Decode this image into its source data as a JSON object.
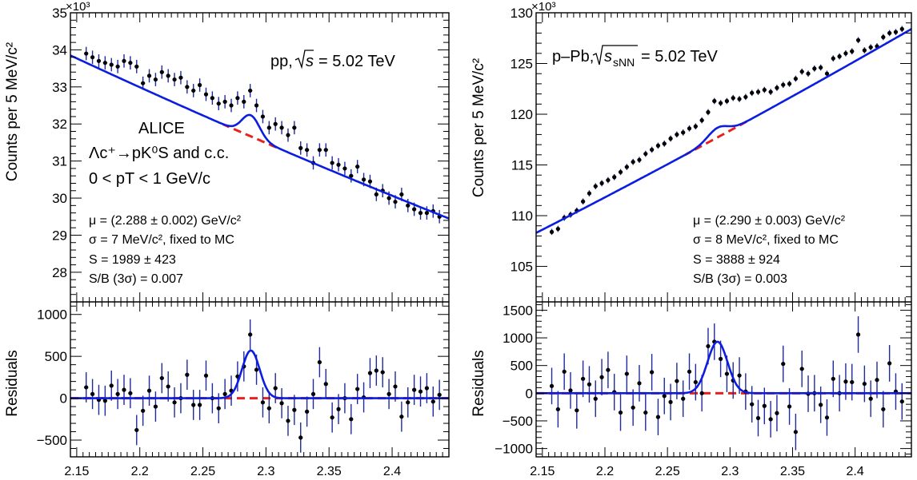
{
  "chart_data": [
    {
      "type": "scatter",
      "panel": "pp",
      "exponent_label": "×10³",
      "ylabel": "Counts per 5 MeV/c²",
      "residual_ylabel": "Residuals",
      "xlim": [
        2.145,
        2.445
      ],
      "ylim": [
        27.2,
        35
      ],
      "residual_ylim": [
        -700,
        1150
      ],
      "x_ticks": [
        2.15,
        2.2,
        2.25,
        2.3,
        2.35,
        2.4
      ],
      "x_tick_labels": [
        "2.15",
        "2.2",
        "2.25",
        "2.3",
        "2.35",
        "2.4"
      ],
      "y_ticks": [
        28,
        29,
        30,
        31,
        32,
        33,
        34,
        35
      ],
      "y_tick_labels": [
        "28",
        "29",
        "30",
        "31",
        "32",
        "33",
        "34",
        "35"
      ],
      "residual_y_ticks": [
        -500,
        0,
        500,
        1000
      ],
      "residual_y_tick_labels": [
        "−500",
        "0",
        "500",
        "1000"
      ],
      "system_label": "pp,",
      "energy_label": "= 5.02 TeV",
      "energy_symbol": "s",
      "alice_label": "ALICE",
      "decay_label": "Λc⁺→pK⁰S and c.c.",
      "pt_label": "0 < pT < 1 GeV/c",
      "stats": [
        "μ = (2.288 ± 0.002) GeV/c²",
        "σ = 7 MeV/c², fixed to MC",
        "S = 1989 ± 423",
        "S/B (3σ) = 0.007"
      ],
      "fit": {
        "mu": 2.288,
        "sigma": 0.007,
        "bg_start": 33.85,
        "bg_end": 29.45,
        "bg_quad": -0.35,
        "peak_height": 0.57,
        "residual_peak": 570
      },
      "points": {
        "x": [
          2.1575,
          2.1625,
          2.1675,
          2.1725,
          2.1775,
          2.1825,
          2.1875,
          2.1925,
          2.1975,
          2.2025,
          2.2075,
          2.2125,
          2.2175,
          2.2225,
          2.2275,
          2.2325,
          2.2375,
          2.2425,
          2.2475,
          2.2525,
          2.2575,
          2.2625,
          2.2675,
          2.2725,
          2.2775,
          2.2825,
          2.2875,
          2.2925,
          2.2975,
          2.3025,
          2.3075,
          2.3125,
          2.3175,
          2.3225,
          2.3275,
          2.3325,
          2.3375,
          2.3425,
          2.3475,
          2.3525,
          2.3575,
          2.3625,
          2.3675,
          2.3725,
          2.3775,
          2.3825,
          2.3875,
          2.3925,
          2.3975,
          2.4025,
          2.4075,
          2.4125,
          2.4175,
          2.4225,
          2.4275,
          2.4325,
          2.4375
        ],
        "y": [
          33.9,
          33.8,
          33.7,
          33.65,
          33.6,
          33.55,
          33.7,
          33.65,
          33.55,
          33.1,
          33.3,
          33.2,
          33.4,
          33.3,
          33.2,
          33.25,
          33.0,
          32.9,
          33.05,
          32.8,
          32.7,
          32.55,
          32.6,
          32.5,
          32.7,
          32.6,
          32.9,
          32.5,
          32.2,
          31.9,
          32.0,
          31.9,
          31.7,
          31.9,
          31.35,
          31.3,
          30.95,
          31.3,
          31.3,
          30.95,
          30.9,
          30.8,
          30.6,
          30.85,
          30.5,
          30.45,
          30.1,
          30.2,
          30.0,
          29.9,
          30.1,
          29.8,
          29.7,
          29.6,
          29.6,
          29.65,
          29.5
        ],
        "yerr": 0.18
      },
      "residuals": {
        "x": [
          2.1575,
          2.1625,
          2.1675,
          2.1725,
          2.1775,
          2.1825,
          2.1875,
          2.1925,
          2.1975,
          2.2025,
          2.2075,
          2.2125,
          2.2175,
          2.2225,
          2.2275,
          2.2325,
          2.2375,
          2.2425,
          2.2475,
          2.2525,
          2.2575,
          2.2625,
          2.2675,
          2.2725,
          2.2775,
          2.2825,
          2.2875,
          2.2925,
          2.2975,
          2.3025,
          2.3075,
          2.3125,
          2.3175,
          2.3225,
          2.3275,
          2.3325,
          2.3375,
          2.3425,
          2.3475,
          2.3525,
          2.3575,
          2.3625,
          2.3675,
          2.3725,
          2.3775,
          2.3825,
          2.3875,
          2.3925,
          2.3975,
          2.4025,
          2.4075,
          2.4125,
          2.4175,
          2.4225,
          2.4275,
          2.4325,
          2.4375
        ],
        "y": [
          130,
          50,
          -20,
          -30,
          150,
          50,
          100,
          60,
          -380,
          -150,
          90,
          -100,
          240,
          140,
          -50,
          0,
          280,
          -80,
          -80,
          270,
          0,
          -120,
          50,
          90,
          260,
          380,
          760,
          340,
          -50,
          -120,
          120,
          -60,
          -270,
          -140,
          -470,
          -160,
          50,
          430,
          170,
          -230,
          -130,
          0,
          -250,
          110,
          10,
          300,
          330,
          310,
          50,
          140,
          -220,
          -50,
          100,
          80,
          120,
          -40,
          40
        ],
        "yerr": 180
      }
    },
    {
      "type": "scatter",
      "panel": "p-Pb",
      "exponent_label": "×10³",
      "ylabel": "Counts per 5 MeV/c²",
      "residual_ylabel": "Residuals",
      "xlim": [
        2.145,
        2.445
      ],
      "ylim": [
        101.5,
        130
      ],
      "residual_ylim": [
        -1150,
        1650
      ],
      "x_ticks": [
        2.15,
        2.2,
        2.25,
        2.3,
        2.35,
        2.4
      ],
      "x_tick_labels": [
        "2.15",
        "2.2",
        "2.25",
        "2.3",
        "2.35",
        "2.4"
      ],
      "y_ticks": [
        105,
        110,
        115,
        120,
        125,
        130
      ],
      "y_tick_labels": [
        "105",
        "110",
        "115",
        "120",
        "125",
        "130"
      ],
      "residual_y_ticks": [
        -1000,
        -500,
        0,
        500,
        1000,
        1500
      ],
      "residual_y_tick_labels": [
        "−1000",
        "−500",
        "0",
        "500",
        "1000",
        "1500"
      ],
      "system_label": "p–Pb,",
      "energy_label": "= 5.02 TeV",
      "energy_symbol": "sNN",
      "stats": [
        "μ = (2.290 ± 0.003) GeV/c²",
        "σ = 8 MeV/c², fixed to MC",
        "S = 3888 ± 924",
        "S/B (3σ) = 0.003"
      ],
      "fit": {
        "mu": 2.29,
        "sigma": 0.008,
        "bg_start": 108.3,
        "bg_end": 128.4,
        "bg_quad": -1.2,
        "peak_height": 0.95,
        "residual_peak": 930
      },
      "points": {
        "x": [
          2.1575,
          2.1625,
          2.1675,
          2.1725,
          2.1775,
          2.1825,
          2.1875,
          2.1925,
          2.1975,
          2.2025,
          2.2075,
          2.2125,
          2.2175,
          2.2225,
          2.2275,
          2.2325,
          2.2375,
          2.2425,
          2.2475,
          2.2525,
          2.2575,
          2.2625,
          2.2675,
          2.2725,
          2.2775,
          2.2825,
          2.2875,
          2.2925,
          2.2975,
          2.3025,
          2.3075,
          2.3125,
          2.3175,
          2.3225,
          2.3275,
          2.3325,
          2.3375,
          2.3425,
          2.3475,
          2.3525,
          2.3575,
          2.3625,
          2.3675,
          2.3725,
          2.3775,
          2.3825,
          2.3875,
          2.3925,
          2.3975,
          2.4025,
          2.4075,
          2.4125,
          2.4175,
          2.4225,
          2.4275,
          2.4325,
          2.4375
        ],
        "y": [
          108.4,
          108.7,
          109.8,
          110.1,
          110.5,
          111.4,
          112.2,
          112.9,
          113.2,
          113.5,
          113.8,
          114.3,
          114.8,
          115.3,
          115.5,
          116.1,
          116.5,
          116.9,
          117.1,
          117.6,
          118.0,
          118.2,
          118.6,
          118.8,
          119.4,
          120.2,
          121.3,
          121.1,
          121.3,
          121.6,
          121.5,
          121.7,
          122.1,
          122.2,
          122.4,
          122.2,
          122.6,
          122.9,
          123.0,
          123.5,
          124.2,
          124.0,
          124.5,
          124.6,
          124.0,
          125.5,
          125.7,
          126.0,
          126.2,
          127.3,
          126.3,
          126.6,
          126.7,
          127.6,
          128.0,
          128.1,
          128.4
        ],
        "yerr": 0.3
      },
      "residuals": {
        "x": [
          2.1575,
          2.1625,
          2.1675,
          2.1725,
          2.1775,
          2.1825,
          2.1875,
          2.1925,
          2.1975,
          2.2025,
          2.2075,
          2.2125,
          2.2175,
          2.2225,
          2.2275,
          2.2325,
          2.2375,
          2.2425,
          2.2475,
          2.2525,
          2.2575,
          2.2625,
          2.2675,
          2.2725,
          2.2775,
          2.2825,
          2.2875,
          2.2925,
          2.2975,
          2.3025,
          2.3075,
          2.3125,
          2.3175,
          2.3225,
          2.3275,
          2.3325,
          2.3375,
          2.3425,
          2.3475,
          2.3525,
          2.3575,
          2.3625,
          2.3675,
          2.3725,
          2.3775,
          2.3825,
          2.3875,
          2.3925,
          2.3975,
          2.4025,
          2.4075,
          2.4125,
          2.4175,
          2.4225,
          2.4275,
          2.4325,
          2.4375
        ],
        "y": [
          130,
          -290,
          390,
          50,
          -310,
          260,
          160,
          -100,
          290,
          420,
          20,
          -350,
          350,
          -260,
          180,
          -350,
          380,
          -430,
          -50,
          -160,
          220,
          -100,
          390,
          200,
          0,
          850,
          930,
          620,
          350,
          230,
          320,
          30,
          -200,
          -450,
          -230,
          -470,
          -360,
          530,
          -240,
          -700,
          440,
          -10,
          0,
          -210,
          -440,
          260,
          0,
          210,
          200,
          1060,
          170,
          -100,
          240,
          -290,
          540,
          30,
          -150
        ],
        "yerr": 330
      }
    }
  ]
}
